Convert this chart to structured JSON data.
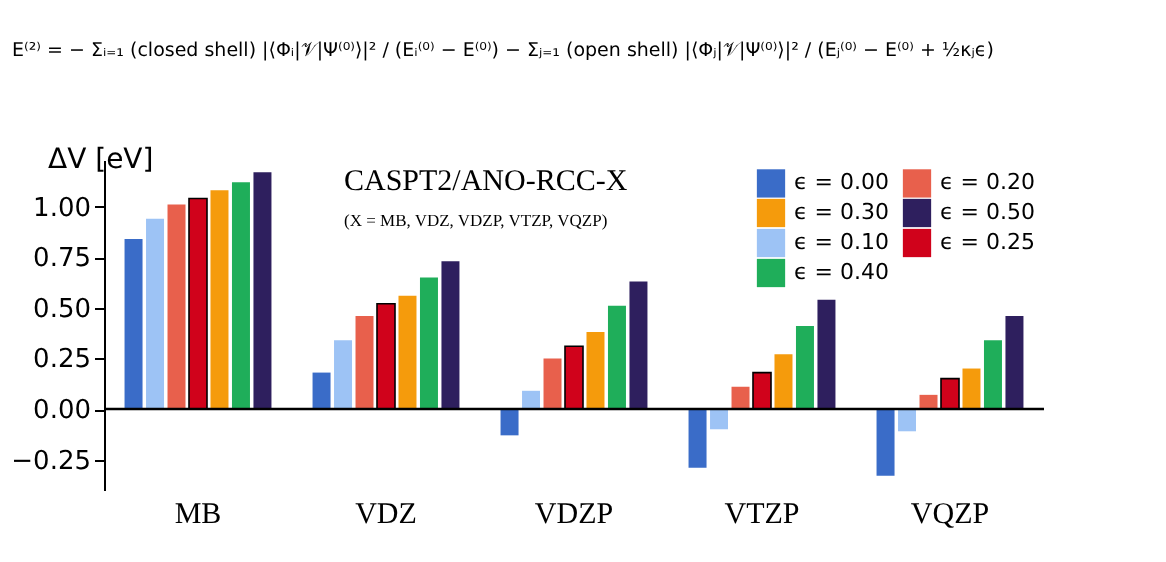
{
  "chart_data": {
    "type": "bar",
    "title": "CASPT2/ANO-RCC-X",
    "subtitle": "(X = MB, VDZ, VDZP, VTZP, VQZP)",
    "ylabel": "ΔV  [eV]",
    "annotations": [
      "E⁽²⁾ = − Σᵢ₌₁ (closed shell) |⟨Φᵢ|𝒱|Ψ⁽⁰⁾⟩|² / (Eᵢ⁽⁰⁾ − E⁽⁰⁾) − Σⱼ₌₁ (open shell) |⟨Φⱼ|𝒱|Ψ⁽⁰⁾⟩|² / (Eⱼ⁽⁰⁾ − E⁽⁰⁾ + ½κⱼϵ)"
    ],
    "categories": [
      "MB",
      "VDZ",
      "VDZP",
      "VTZP",
      "VQZP"
    ],
    "series": [
      {
        "name": "ϵ = 0.00",
        "color": "#3a6cc8",
        "values": [
          0.84,
          0.18,
          -0.13,
          -0.29,
          -0.33
        ]
      },
      {
        "name": "ϵ = 0.10",
        "color": "#9dc3f5",
        "values": [
          0.94,
          0.34,
          0.09,
          -0.1,
          -0.11
        ]
      },
      {
        "name": "ϵ = 0.20",
        "color": "#e8604c",
        "values": [
          1.01,
          0.46,
          0.25,
          0.11,
          0.07
        ]
      },
      {
        "name": "ϵ = 0.25",
        "color": "#d0021b",
        "values": [
          1.04,
          0.52,
          0.31,
          0.18,
          0.15
        ]
      },
      {
        "name": "ϵ = 0.30",
        "color": "#f59b0c",
        "values": [
          1.08,
          0.56,
          0.38,
          0.27,
          0.2
        ]
      },
      {
        "name": "ϵ = 0.40",
        "color": "#1fae5a",
        "values": [
          1.12,
          0.65,
          0.51,
          0.41,
          0.34
        ]
      },
      {
        "name": "ϵ = 0.50",
        "color": "#2e1f5e",
        "values": [
          1.17,
          0.73,
          0.63,
          0.54,
          0.46
        ]
      }
    ],
    "ylim": [
      -0.4,
      1.23
    ],
    "yticks": [
      {
        "value": -0.25,
        "label": "−0.25"
      },
      {
        "value": 0,
        "label": "0.00"
      },
      {
        "value": 0.25,
        "label": "0.25"
      },
      {
        "value": 0.5,
        "label": "0.50"
      },
      {
        "value": 0.75,
        "label": "0.75"
      },
      {
        "value": 1,
        "label": "1.00"
      }
    ],
    "ref_lines": [
      {
        "axis": "y",
        "value": 0,
        "color": "#000000"
      }
    ],
    "grid": false,
    "legend": "top right"
  }
}
